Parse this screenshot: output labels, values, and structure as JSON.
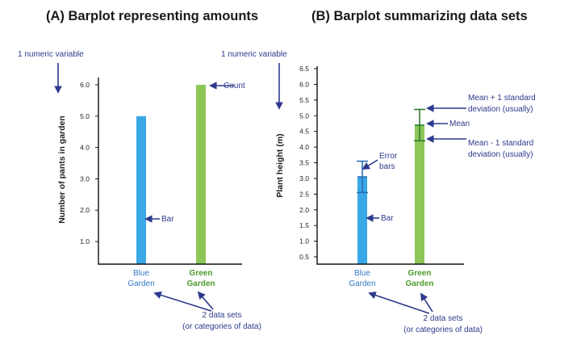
{
  "colors": {
    "blue": "#3aa7e6",
    "green": "#8cc656",
    "annotation": "#2d3a8c",
    "blue_text": "#3579c6",
    "green_text": "#4f9a2c",
    "error_bar": "#2f7d2f"
  },
  "chart_data": [
    {
      "type": "bar",
      "title": "(A) Barplot representing amounts",
      "ylabel": "Number of pants in garden",
      "ylim": [
        0,
        6.5
      ],
      "yticks": [
        "1.0",
        "2.0",
        "3.0",
        "4.0",
        "5.0",
        "6.0"
      ],
      "categories": [
        "Blue Garden",
        "Green Garden"
      ],
      "category_lines": [
        [
          "Blue",
          "Garden"
        ],
        [
          "Green",
          "Garden"
        ]
      ],
      "values": [
        5.0,
        6.0
      ],
      "annotations": {
        "numeric": "1 numeric variable",
        "count": "Count",
        "bar": "Bar",
        "datasets_1": "2 data sets",
        "datasets_2": "(or categories of data)"
      }
    },
    {
      "type": "bar",
      "title": "(B) Barplot summarizing data sets",
      "ylabel": "Plant height (m)",
      "ylim": [
        0.3,
        6.6
      ],
      "yticks": [
        "0.5",
        "1.0",
        "1.5",
        "2.0",
        "2.5",
        "3.0",
        "3.5",
        "4.0",
        "4.5",
        "5.0",
        "5.5",
        "6.0",
        "6.5"
      ],
      "categories": [
        "Blue Garden",
        "Green Garden"
      ],
      "category_lines": [
        [
          "Blue",
          "Garden"
        ],
        [
          "Green",
          "Garden"
        ]
      ],
      "values": [
        3.05,
        4.7
      ],
      "error": [
        0.5,
        0.5
      ],
      "annotations": {
        "numeric": "1 numeric variable",
        "error_1": "Error",
        "error_2": "bars",
        "bar": "Bar",
        "mean_plus_1": "Mean + 1 standard",
        "mean_plus_2": "deviation (usually)",
        "mean": "Mean",
        "mean_minus_1": "Mean - 1 standard",
        "mean_minus_2": "deviation (usually)",
        "datasets_1": "2 data sets",
        "datasets_2": "(or categories of data)"
      }
    }
  ]
}
